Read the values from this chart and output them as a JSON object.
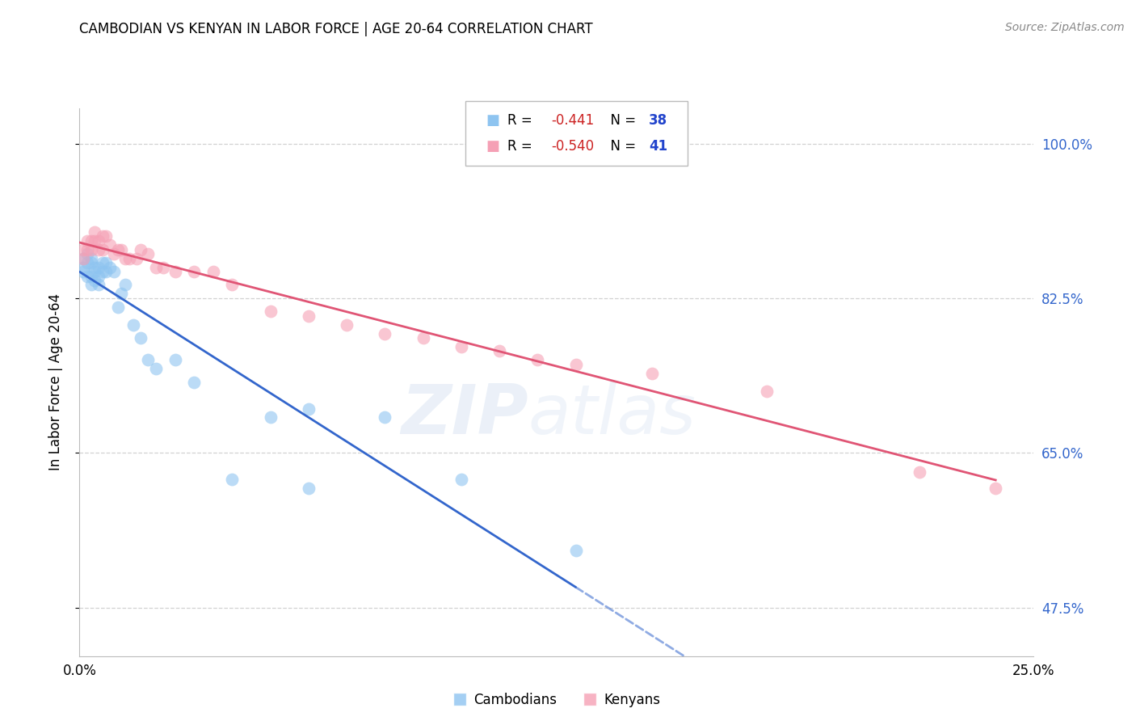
{
  "title": "CAMBODIAN VS KENYAN IN LABOR FORCE | AGE 20-64 CORRELATION CHART",
  "source": "Source: ZipAtlas.com",
  "ylabel": "In Labor Force | Age 20-64",
  "xlim": [
    0.0,
    0.25
  ],
  "ylim": [
    0.42,
    1.04
  ],
  "yticks": [
    0.475,
    0.65,
    0.825,
    1.0
  ],
  "ytick_labels": [
    "47.5%",
    "65.0%",
    "82.5%",
    "100.0%"
  ],
  "xticks": [
    0.0,
    0.05,
    0.1,
    0.15,
    0.2,
    0.25
  ],
  "xtick_labels": [
    "0.0%",
    "",
    "",
    "",
    "",
    "25.0%"
  ],
  "cambodian_R": -0.441,
  "cambodian_N": 38,
  "kenyan_R": -0.54,
  "kenyan_N": 41,
  "cambodian_color": "#8ec4f0",
  "kenyan_color": "#f5a0b5",
  "cambodian_line_color": "#3366cc",
  "kenyan_line_color": "#e05575",
  "background_color": "#ffffff",
  "grid_color": "#cccccc",
  "watermark_zip": "ZIP",
  "watermark_atlas": "atlas",
  "cambodian_x": [
    0.001,
    0.001,
    0.001,
    0.002,
    0.002,
    0.002,
    0.003,
    0.003,
    0.003,
    0.003,
    0.004,
    0.004,
    0.004,
    0.005,
    0.005,
    0.005,
    0.006,
    0.006,
    0.007,
    0.007,
    0.008,
    0.009,
    0.01,
    0.011,
    0.012,
    0.014,
    0.016,
    0.03,
    0.05,
    0.06,
    0.08,
    0.1,
    0.13,
    0.06,
    0.04,
    0.025,
    0.02,
    0.018
  ],
  "cambodian_y": [
    0.87,
    0.86,
    0.855,
    0.875,
    0.865,
    0.85,
    0.87,
    0.865,
    0.85,
    0.84,
    0.86,
    0.855,
    0.845,
    0.86,
    0.85,
    0.84,
    0.865,
    0.855,
    0.865,
    0.855,
    0.86,
    0.855,
    0.815,
    0.83,
    0.84,
    0.795,
    0.78,
    0.73,
    0.69,
    0.7,
    0.69,
    0.62,
    0.54,
    0.61,
    0.62,
    0.755,
    0.745,
    0.755
  ],
  "kenyan_x": [
    0.001,
    0.001,
    0.002,
    0.002,
    0.003,
    0.003,
    0.004,
    0.004,
    0.005,
    0.005,
    0.006,
    0.006,
    0.007,
    0.008,
    0.009,
    0.01,
    0.011,
    0.012,
    0.013,
    0.015,
    0.016,
    0.018,
    0.02,
    0.022,
    0.025,
    0.03,
    0.035,
    0.04,
    0.05,
    0.06,
    0.07,
    0.08,
    0.09,
    0.1,
    0.11,
    0.12,
    0.13,
    0.15,
    0.18,
    0.22,
    0.24
  ],
  "kenyan_y": [
    0.88,
    0.87,
    0.89,
    0.88,
    0.89,
    0.88,
    0.9,
    0.89,
    0.89,
    0.88,
    0.895,
    0.88,
    0.895,
    0.885,
    0.875,
    0.88,
    0.88,
    0.87,
    0.87,
    0.87,
    0.88,
    0.875,
    0.86,
    0.86,
    0.855,
    0.855,
    0.855,
    0.84,
    0.81,
    0.805,
    0.795,
    0.785,
    0.78,
    0.77,
    0.765,
    0.755,
    0.75,
    0.74,
    0.72,
    0.628,
    0.61
  ]
}
